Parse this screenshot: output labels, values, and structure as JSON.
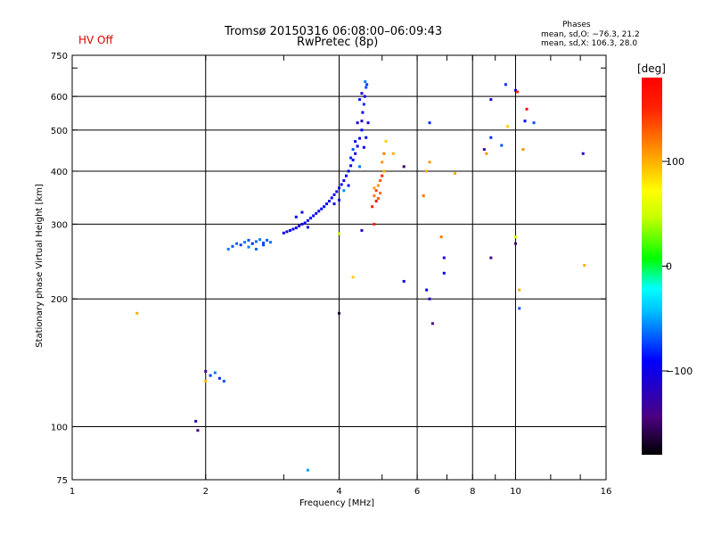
{
  "header": {
    "title_line1": "Tromsø 20150316 06:08:00–06:09:43",
    "title_line2": "RwPretec (8p)",
    "hv_status": "HV Off",
    "phase_title": "Phases",
    "phase_o": "mean, sd,O: −76.3, 21.2",
    "phase_x": "mean, sd,X: 106.3, 28.0"
  },
  "colors": {
    "hv_status": "#e00000",
    "grid": "#000000"
  },
  "chart_data": {
    "type": "scatter",
    "title": "Tromsø 20150316 06:08:00–06:09:43",
    "subtitle": "RwPretec (8p)",
    "xlabel": "Frequency [MHz]",
    "ylabel": "Stationary phase Virtual Height [km]",
    "xscale": "log",
    "yscale": "log",
    "xlim": [
      1,
      16
    ],
    "ylim": [
      75,
      750
    ],
    "x_ticks": [
      1,
      2,
      4,
      6,
      8,
      10,
      16
    ],
    "x_tick_labels": [
      "1",
      "2",
      "4",
      "6",
      "8",
      "10",
      "16"
    ],
    "x_gridlines": [
      2,
      4,
      6,
      8,
      10
    ],
    "y_ticks": [
      75,
      100,
      200,
      300,
      400,
      500,
      600,
      750
    ],
    "y_tick_labels": [
      "75",
      "100",
      "200",
      "300",
      "400",
      "500",
      "600",
      "750"
    ],
    "y_gridlines": [
      100,
      200,
      300,
      400,
      500,
      600
    ],
    "grid": true,
    "colorbar": {
      "label": "[deg]",
      "min": -180,
      "max": 180,
      "ticks": [
        -100,
        0,
        100
      ],
      "tick_labels": [
        "−100",
        "0",
        "100"
      ]
    },
    "points": [
      {
        "x": 2.25,
        "y": 262,
        "p": -60
      },
      {
        "x": 2.3,
        "y": 266,
        "p": -70
      },
      {
        "x": 2.35,
        "y": 270,
        "p": -65
      },
      {
        "x": 2.4,
        "y": 268,
        "p": -75
      },
      {
        "x": 2.45,
        "y": 272,
        "p": -60
      },
      {
        "x": 2.5,
        "y": 275,
        "p": -70
      },
      {
        "x": 2.55,
        "y": 270,
        "p": -80
      },
      {
        "x": 2.6,
        "y": 273,
        "p": -65
      },
      {
        "x": 2.65,
        "y": 276,
        "p": -60
      },
      {
        "x": 2.7,
        "y": 271,
        "p": -72
      },
      {
        "x": 2.75,
        "y": 275,
        "p": -68
      },
      {
        "x": 2.8,
        "y": 272,
        "p": -62
      },
      {
        "x": 2.5,
        "y": 265,
        "p": -58
      },
      {
        "x": 2.6,
        "y": 262,
        "p": -66
      },
      {
        "x": 2.7,
        "y": 268,
        "p": -74
      },
      {
        "x": 3.0,
        "y": 286,
        "p": -95
      },
      {
        "x": 3.05,
        "y": 288,
        "p": -100
      },
      {
        "x": 3.1,
        "y": 290,
        "p": -90
      },
      {
        "x": 3.15,
        "y": 292,
        "p": -105
      },
      {
        "x": 3.2,
        "y": 294,
        "p": -95
      },
      {
        "x": 3.25,
        "y": 297,
        "p": -110
      },
      {
        "x": 3.3,
        "y": 300,
        "p": -100
      },
      {
        "x": 3.35,
        "y": 302,
        "p": -92
      },
      {
        "x": 3.4,
        "y": 306,
        "p": -98
      },
      {
        "x": 3.45,
        "y": 310,
        "p": -85
      },
      {
        "x": 3.5,
        "y": 314,
        "p": -90
      },
      {
        "x": 3.55,
        "y": 318,
        "p": -100
      },
      {
        "x": 3.6,
        "y": 322,
        "p": -95
      },
      {
        "x": 3.65,
        "y": 326,
        "p": -88
      },
      {
        "x": 3.7,
        "y": 330,
        "p": -92
      },
      {
        "x": 3.75,
        "y": 335,
        "p": -100
      },
      {
        "x": 3.8,
        "y": 340,
        "p": -95
      },
      {
        "x": 3.85,
        "y": 346,
        "p": -90
      },
      {
        "x": 3.9,
        "y": 352,
        "p": -98
      },
      {
        "x": 3.95,
        "y": 358,
        "p": -105
      },
      {
        "x": 4.0,
        "y": 365,
        "p": -95
      },
      {
        "x": 4.05,
        "y": 372,
        "p": -88
      },
      {
        "x": 4.1,
        "y": 380,
        "p": -100
      },
      {
        "x": 4.15,
        "y": 390,
        "p": -95
      },
      {
        "x": 4.2,
        "y": 400,
        "p": -90
      },
      {
        "x": 4.25,
        "y": 412,
        "p": -100
      },
      {
        "x": 4.3,
        "y": 425,
        "p": -92
      },
      {
        "x": 4.35,
        "y": 440,
        "p": -98
      },
      {
        "x": 4.4,
        "y": 458,
        "p": -95
      },
      {
        "x": 4.45,
        "y": 478,
        "p": -100
      },
      {
        "x": 4.5,
        "y": 500,
        "p": -92
      },
      {
        "x": 4.5,
        "y": 525,
        "p": -110
      },
      {
        "x": 4.52,
        "y": 550,
        "p": -95
      },
      {
        "x": 4.55,
        "y": 575,
        "p": -80
      },
      {
        "x": 4.57,
        "y": 600,
        "p": -100
      },
      {
        "x": 4.6,
        "y": 630,
        "p": -70
      },
      {
        "x": 4.58,
        "y": 650,
        "p": -60
      },
      {
        "x": 4.62,
        "y": 640,
        "p": -75
      },
      {
        "x": 4.5,
        "y": 610,
        "p": -105
      },
      {
        "x": 4.45,
        "y": 590,
        "p": -85
      },
      {
        "x": 4.4,
        "y": 520,
        "p": -110
      },
      {
        "x": 4.35,
        "y": 470,
        "p": -95
      },
      {
        "x": 4.3,
        "y": 450,
        "p": -70
      },
      {
        "x": 4.25,
        "y": 430,
        "p": -80
      },
      {
        "x": 4.6,
        "y": 480,
        "p": -90
      },
      {
        "x": 4.65,
        "y": 520,
        "p": -100
      },
      {
        "x": 4.55,
        "y": 455,
        "p": -95
      },
      {
        "x": 4.45,
        "y": 410,
        "p": -60
      },
      {
        "x": 4.2,
        "y": 370,
        "p": -100
      },
      {
        "x": 4.1,
        "y": 360,
        "p": -55
      },
      {
        "x": 4.0,
        "y": 342,
        "p": -98
      },
      {
        "x": 3.9,
        "y": 335,
        "p": -95
      },
      {
        "x": 3.3,
        "y": 320,
        "p": -100
      },
      {
        "x": 3.2,
        "y": 312,
        "p": -92
      },
      {
        "x": 3.4,
        "y": 295,
        "p": -96
      },
      {
        "x": 4.8,
        "y": 350,
        "p": 120
      },
      {
        "x": 4.85,
        "y": 360,
        "p": 140
      },
      {
        "x": 4.9,
        "y": 370,
        "p": 110
      },
      {
        "x": 4.95,
        "y": 380,
        "p": 130
      },
      {
        "x": 5.0,
        "y": 390,
        "p": 150
      },
      {
        "x": 5.05,
        "y": 400,
        "p": 100
      },
      {
        "x": 4.85,
        "y": 340,
        "p": 160
      },
      {
        "x": 4.9,
        "y": 345,
        "p": 130
      },
      {
        "x": 5.0,
        "y": 420,
        "p": 110
      },
      {
        "x": 5.05,
        "y": 440,
        "p": 120
      },
      {
        "x": 5.1,
        "y": 470,
        "p": 90
      },
      {
        "x": 4.75,
        "y": 330,
        "p": 150
      },
      {
        "x": 4.8,
        "y": 365,
        "p": 105
      },
      {
        "x": 4.95,
        "y": 355,
        "p": 125
      },
      {
        "x": 1.4,
        "y": 185,
        "p": 100
      },
      {
        "x": 2.0,
        "y": 135,
        "p": -130
      },
      {
        "x": 2.05,
        "y": 132,
        "p": -75
      },
      {
        "x": 2.1,
        "y": 134,
        "p": -60
      },
      {
        "x": 2.15,
        "y": 130,
        "p": -80
      },
      {
        "x": 2.2,
        "y": 128,
        "p": -70
      },
      {
        "x": 2.0,
        "y": 128,
        "p": 100
      },
      {
        "x": 1.9,
        "y": 103,
        "p": -120
      },
      {
        "x": 1.92,
        "y": 98,
        "p": -150
      },
      {
        "x": 3.4,
        "y": 79,
        "p": -50
      },
      {
        "x": 4.0,
        "y": 185,
        "p": -165
      },
      {
        "x": 4.0,
        "y": 285,
        "p": 55
      },
      {
        "x": 4.3,
        "y": 225,
        "p": 90
      },
      {
        "x": 4.5,
        "y": 290,
        "p": -115
      },
      {
        "x": 4.8,
        "y": 300,
        "p": 150
      },
      {
        "x": 5.3,
        "y": 440,
        "p": 100
      },
      {
        "x": 5.6,
        "y": 410,
        "p": -155
      },
      {
        "x": 5.6,
        "y": 220,
        "p": -100
      },
      {
        "x": 6.2,
        "y": 350,
        "p": 120
      },
      {
        "x": 6.3,
        "y": 400,
        "p": 100
      },
      {
        "x": 6.4,
        "y": 420,
        "p": 110
      },
      {
        "x": 6.4,
        "y": 520,
        "p": -80
      },
      {
        "x": 6.3,
        "y": 210,
        "p": -90
      },
      {
        "x": 6.5,
        "y": 175,
        "p": -140
      },
      {
        "x": 6.4,
        "y": 200,
        "p": -120
      },
      {
        "x": 6.8,
        "y": 280,
        "p": 120
      },
      {
        "x": 6.9,
        "y": 250,
        "p": -110
      },
      {
        "x": 6.9,
        "y": 230,
        "p": -95
      },
      {
        "x": 7.3,
        "y": 395,
        "p": 100
      },
      {
        "x": 8.5,
        "y": 450,
        "p": -130
      },
      {
        "x": 8.6,
        "y": 440,
        "p": 110
      },
      {
        "x": 8.8,
        "y": 480,
        "p": -80
      },
      {
        "x": 8.8,
        "y": 590,
        "p": -100
      },
      {
        "x": 8.8,
        "y": 250,
        "p": -140
      },
      {
        "x": 9.3,
        "y": 460,
        "p": -70
      },
      {
        "x": 9.5,
        "y": 640,
        "p": -80
      },
      {
        "x": 9.6,
        "y": 510,
        "p": 90
      },
      {
        "x": 10.0,
        "y": 620,
        "p": -100
      },
      {
        "x": 10.1,
        "y": 615,
        "p": 150
      },
      {
        "x": 10.0,
        "y": 280,
        "p": 60
      },
      {
        "x": 10.0,
        "y": 270,
        "p": -150
      },
      {
        "x": 10.2,
        "y": 210,
        "p": 100
      },
      {
        "x": 10.2,
        "y": 190,
        "p": -70
      },
      {
        "x": 10.4,
        "y": 450,
        "p": 110
      },
      {
        "x": 10.5,
        "y": 525,
        "p": -90
      },
      {
        "x": 11.0,
        "y": 520,
        "p": -70
      },
      {
        "x": 10.6,
        "y": 560,
        "p": 170
      },
      {
        "x": 14.2,
        "y": 440,
        "p": -110
      },
      {
        "x": 14.3,
        "y": 240,
        "p": 100
      }
    ]
  }
}
